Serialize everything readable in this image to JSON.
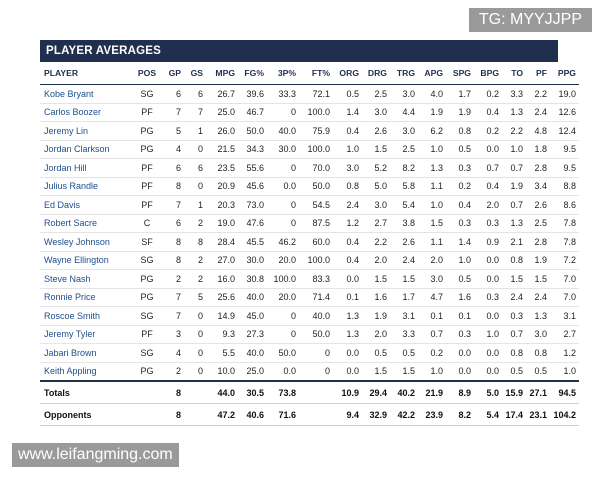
{
  "title": "PLAYER AVERAGES",
  "columns": [
    "PLAYER",
    "POS",
    "GP",
    "GS",
    "MPG",
    "FG%",
    "3P%",
    "FT%",
    "ORG",
    "DRG",
    "TRG",
    "APG",
    "SPG",
    "BPG",
    "TO",
    "PF",
    "PPG"
  ],
  "rows": [
    [
      "Kobe Bryant",
      "SG",
      "6",
      "6",
      "26.7",
      "39.6",
      "33.3",
      "72.1",
      "0.5",
      "2.5",
      "3.0",
      "4.0",
      "1.7",
      "0.2",
      "3.3",
      "2.2",
      "19.0"
    ],
    [
      "Carlos Boozer",
      "PF",
      "7",
      "7",
      "25.0",
      "46.7",
      "0",
      "100.0",
      "1.4",
      "3.0",
      "4.4",
      "1.9",
      "1.9",
      "0.4",
      "1.3",
      "2.4",
      "12.6"
    ],
    [
      "Jeremy Lin",
      "PG",
      "5",
      "1",
      "26.0",
      "50.0",
      "40.0",
      "75.9",
      "0.4",
      "2.6",
      "3.0",
      "6.2",
      "0.8",
      "0.2",
      "2.2",
      "4.8",
      "12.4"
    ],
    [
      "Jordan Clarkson",
      "PG",
      "4",
      "0",
      "21.5",
      "34.3",
      "30.0",
      "100.0",
      "1.0",
      "1.5",
      "2.5",
      "1.0",
      "0.5",
      "0.0",
      "1.0",
      "1.8",
      "9.5"
    ],
    [
      "Jordan Hill",
      "PF",
      "6",
      "6",
      "23.5",
      "55.6",
      "0",
      "70.0",
      "3.0",
      "5.2",
      "8.2",
      "1.3",
      "0.3",
      "0.7",
      "0.7",
      "2.8",
      "9.5"
    ],
    [
      "Julius Randle",
      "PF",
      "8",
      "0",
      "20.9",
      "45.6",
      "0.0",
      "50.0",
      "0.8",
      "5.0",
      "5.8",
      "1.1",
      "0.2",
      "0.4",
      "1.9",
      "3.4",
      "8.8"
    ],
    [
      "Ed Davis",
      "PF",
      "7",
      "1",
      "20.3",
      "73.0",
      "0",
      "54.5",
      "2.4",
      "3.0",
      "5.4",
      "1.0",
      "0.4",
      "2.0",
      "0.7",
      "2.6",
      "8.6"
    ],
    [
      "Robert Sacre",
      "C",
      "6",
      "2",
      "19.0",
      "47.6",
      "0",
      "87.5",
      "1.2",
      "2.7",
      "3.8",
      "1.5",
      "0.3",
      "0.3",
      "1.3",
      "2.5",
      "7.8"
    ],
    [
      "Wesley Johnson",
      "SF",
      "8",
      "8",
      "28.4",
      "45.5",
      "46.2",
      "60.0",
      "0.4",
      "2.2",
      "2.6",
      "1.1",
      "1.4",
      "0.9",
      "2.1",
      "2.8",
      "7.8"
    ],
    [
      "Wayne Ellington",
      "SG",
      "8",
      "2",
      "27.0",
      "30.0",
      "20.0",
      "100.0",
      "0.4",
      "2.0",
      "2.4",
      "2.0",
      "1.0",
      "0.0",
      "0.8",
      "1.9",
      "7.2"
    ],
    [
      "Steve Nash",
      "PG",
      "2",
      "2",
      "16.0",
      "30.8",
      "100.0",
      "83.3",
      "0.0",
      "1.5",
      "1.5",
      "3.0",
      "0.5",
      "0.0",
      "1.5",
      "1.5",
      "7.0"
    ],
    [
      "Ronnie Price",
      "PG",
      "7",
      "5",
      "25.6",
      "40.0",
      "20.0",
      "71.4",
      "0.1",
      "1.6",
      "1.7",
      "4.7",
      "1.6",
      "0.3",
      "2.4",
      "2.4",
      "7.0"
    ],
    [
      "Roscoe Smith",
      "SG",
      "7",
      "0",
      "14.9",
      "45.0",
      "0",
      "40.0",
      "1.3",
      "1.9",
      "3.1",
      "0.1",
      "0.1",
      "0.0",
      "0.3",
      "1.3",
      "3.1"
    ],
    [
      "Jeremy Tyler",
      "PF",
      "3",
      "0",
      "9.3",
      "27.3",
      "0",
      "50.0",
      "1.3",
      "2.0",
      "3.3",
      "0.7",
      "0.3",
      "1.0",
      "0.7",
      "3.0",
      "2.7"
    ],
    [
      "Jabari Brown",
      "SG",
      "4",
      "0",
      "5.5",
      "40.0",
      "50.0",
      "0",
      "0.0",
      "0.5",
      "0.5",
      "0.2",
      "0.0",
      "0.0",
      "0.8",
      "0.8",
      "1.2"
    ],
    [
      "Keith Appling",
      "PG",
      "2",
      "0",
      "10.0",
      "25.0",
      "0.0",
      "0",
      "0.0",
      "1.5",
      "1.5",
      "1.0",
      "0.0",
      "0.0",
      "0.5",
      "0.5",
      "1.0"
    ]
  ],
  "summary": [
    [
      "Totals",
      "",
      "8",
      "",
      "44.0",
      "30.5",
      "73.8",
      "",
      "10.9",
      "29.4",
      "40.2",
      "21.9",
      "8.9",
      "5.0",
      "15.9",
      "27.1",
      "94.5"
    ],
    [
      "Opponents",
      "",
      "8",
      "",
      "47.2",
      "40.6",
      "71.6",
      "",
      "9.4",
      "32.9",
      "42.2",
      "23.9",
      "8.2",
      "5.4",
      "17.4",
      "23.1",
      "104.2"
    ]
  ],
  "watermarks": {
    "top_right": "TG: MYYJJPP",
    "bottom_left": "www.leifangming.com"
  },
  "colors": {
    "header_bg": "#1f2f4d",
    "player_link": "#1f4e8c"
  }
}
